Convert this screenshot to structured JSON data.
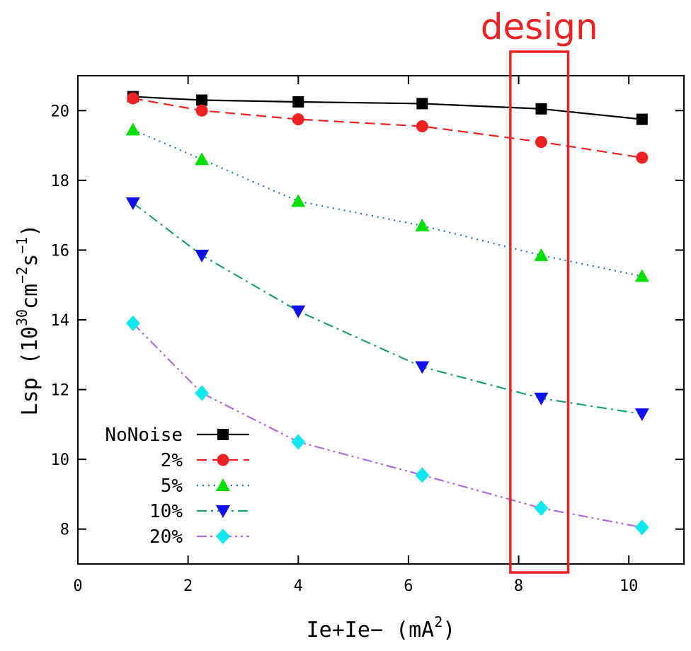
{
  "chart_data": {
    "type": "line",
    "title": "",
    "xlabel": "Ie+Ie− (mA",
    "xlabel_sup": "2",
    "xlabel_close": ")",
    "ylabel_main": "Lsp (10",
    "ylabel_sup1": "30",
    "ylabel_mid1": "cm",
    "ylabel_sup2": "−2",
    "ylabel_mid2": "s",
    "ylabel_sup3": "−1",
    "ylabel_close": ")",
    "xlim": [
      0,
      11
    ],
    "ylim": [
      7,
      21
    ],
    "xticks": [
      0,
      2,
      4,
      6,
      8,
      10
    ],
    "yticks": [
      8,
      10,
      12,
      14,
      16,
      18,
      20
    ],
    "xtick_labels": [
      "0",
      "2",
      "4",
      "6",
      "8",
      "10"
    ],
    "ytick_labels": [
      "8",
      "10",
      "12",
      "14",
      "16",
      "18",
      "20"
    ],
    "grid": false,
    "legend_position": "bottom-left",
    "x": [
      1.0,
      2.25,
      4.0,
      6.25,
      8.41,
      10.24
    ],
    "series": [
      {
        "name": "NoNoise",
        "label": "NoNoise",
        "values": [
          20.4,
          20.3,
          20.25,
          20.2,
          20.05,
          19.75
        ],
        "color": "#000000",
        "marker": "square",
        "dash": "solid"
      },
      {
        "name": "2%",
        "label": "2%",
        "values": [
          20.35,
          20.0,
          19.75,
          19.55,
          19.1,
          18.65
        ],
        "color": "#ee2222",
        "marker": "circle",
        "dash": "dashed"
      },
      {
        "name": "5%",
        "label": "5%",
        "values": [
          19.45,
          18.6,
          17.4,
          16.7,
          15.85,
          15.25
        ],
        "color": "#1e73d6",
        "marker_color": "#00e000",
        "marker": "triangle-up",
        "dash": "dotted"
      },
      {
        "name": "10%",
        "label": "10%",
        "values": [
          17.35,
          15.85,
          14.25,
          12.65,
          11.75,
          11.3
        ],
        "color": "#1f9e73",
        "marker_color": "#1010ee",
        "marker": "triangle-down",
        "dash": "dashdot"
      },
      {
        "name": "20%",
        "label": "20%",
        "values": [
          13.9,
          11.9,
          10.5,
          9.55,
          8.6,
          8.05
        ],
        "color": "#b06be0",
        "marker_color": "#10e8f0",
        "marker": "diamond",
        "dash": "dashdotdot"
      }
    ],
    "annotation": {
      "label": "design",
      "x_range": [
        7.85,
        8.9
      ],
      "color": "#ee2222"
    }
  }
}
